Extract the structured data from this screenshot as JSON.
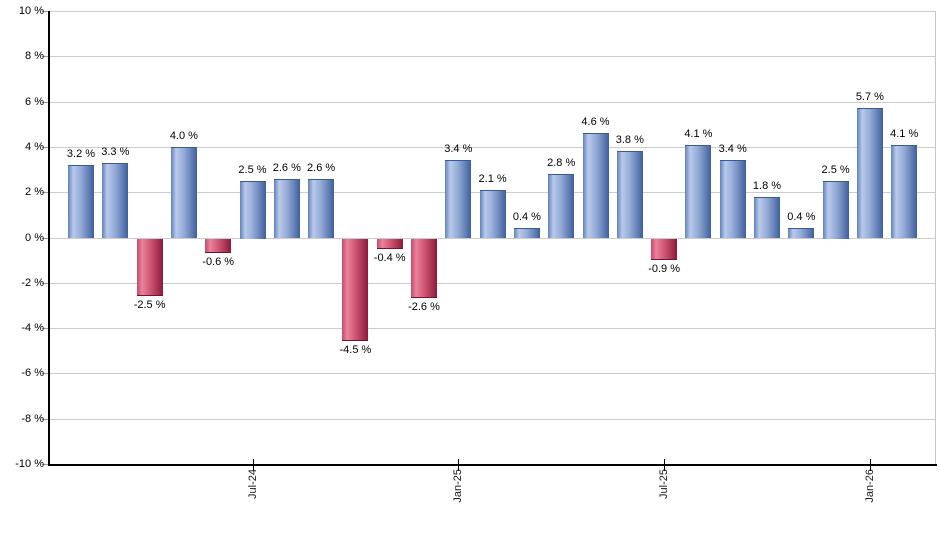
{
  "chart_data": {
    "type": "bar",
    "title": "",
    "xlabel": "",
    "ylabel": "",
    "ylim": [
      -10,
      10
    ],
    "y_step": 2,
    "grid": true,
    "legend": null,
    "unit": "%",
    "values": [
      3.2,
      3.3,
      -2.5,
      4.0,
      -0.6,
      2.5,
      2.6,
      2.6,
      -4.5,
      -0.4,
      -2.6,
      3.4,
      2.1,
      0.4,
      2.8,
      4.6,
      3.8,
      -0.9,
      4.1,
      3.4,
      1.8,
      0.4,
      2.5,
      5.7,
      4.1
    ],
    "bar_labels": [
      "3.2 %",
      "3.3 %",
      "-2.5 %",
      "4.0 %",
      "-0.6 %",
      "2.5 %",
      "2.6 %",
      "2.6 %",
      "-4.5 %",
      "-0.4 %",
      "-2.6 %",
      "3.4 %",
      "2.1 %",
      "0.4 %",
      "2.8 %",
      "4.6 %",
      "3.8 %",
      "-0.9 %",
      "4.1 %",
      "3.4 %",
      "1.8 %",
      "0.4 %",
      "2.5 %",
      "5.7 %",
      "4.1 %"
    ],
    "x_ticks": [
      {
        "label": "Jul-24",
        "bar_index": 5
      },
      {
        "label": "Jan-25",
        "bar_index": 11
      },
      {
        "label": "Jul-25",
        "bar_index": 17
      },
      {
        "label": "Jan-26",
        "bar_index": 23
      }
    ],
    "y_tick_labels": [
      "10 %",
      "8 %",
      "6 %",
      "4 %",
      "2 %",
      "0 %",
      "-2 %",
      "-4 %",
      "-6 %",
      "-8 %",
      "-10 %"
    ],
    "colors": {
      "positive_bar_gradient": [
        "#5f81bd",
        "#bac9e9",
        "#93abd7",
        "#3f5f9d"
      ],
      "negative_bar_gradient": [
        "#c4496e",
        "#e9839c",
        "#d25875",
        "#8b1a3d"
      ],
      "gridline": "#cccccc",
      "axis": "#000000",
      "label_text": "#000000"
    }
  }
}
